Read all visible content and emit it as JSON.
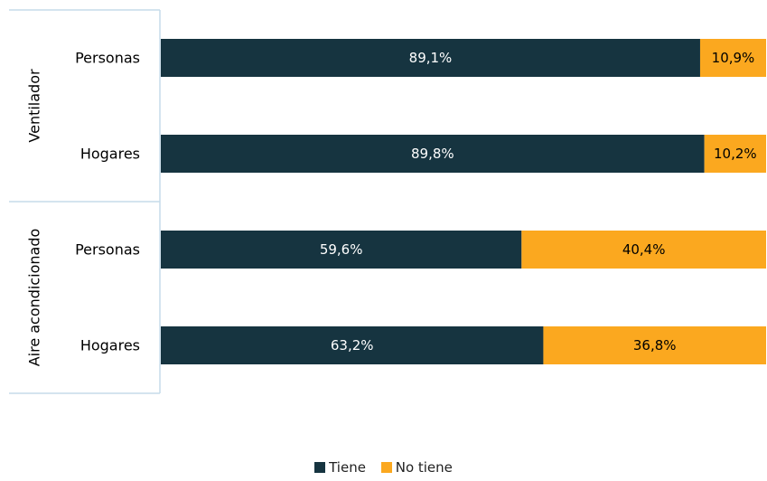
{
  "chart_data": {
    "type": "bar",
    "orientation": "horizontal",
    "stacked": true,
    "groups": [
      {
        "label": "Ventilador",
        "categories": [
          "Personas",
          "Hogares"
        ]
      },
      {
        "label": "Aire acondicionado",
        "categories": [
          "Personas",
          "Hogares"
        ]
      }
    ],
    "categories": [
      "Personas",
      "Hogares",
      "Personas",
      "Hogares"
    ],
    "series": [
      {
        "name": "Tiene",
        "color": "#163440",
        "values": [
          89.1,
          89.8,
          59.6,
          63.2
        ],
        "labels": [
          "89,1%",
          "89,8%",
          "59,6%",
          "63,2%"
        ]
      },
      {
        "name": "No tiene",
        "color": "#FBA81F",
        "values": [
          10.9,
          10.2,
          40.4,
          36.8
        ],
        "labels": [
          "10,9%",
          "10,2%",
          "40,4%",
          "36,8%"
        ]
      }
    ],
    "xlim": [
      0,
      100
    ],
    "grid": false,
    "legend_position": "bottom"
  }
}
